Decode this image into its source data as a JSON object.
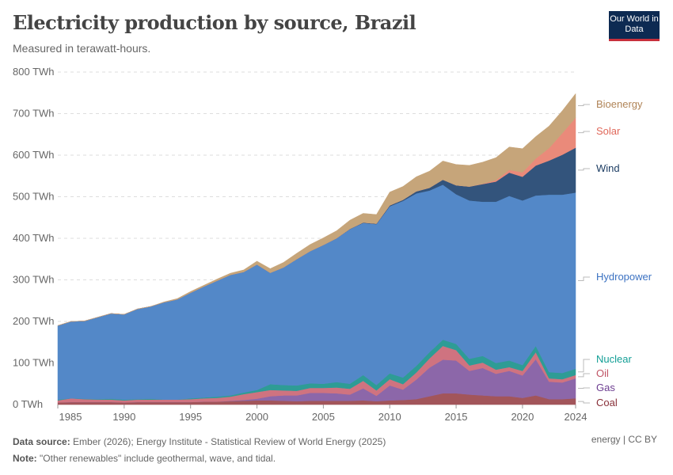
{
  "header": {
    "title": "Electricity production by source, Brazil",
    "subtitle": "Measured in terawatt-hours.",
    "logo": "Our World in Data"
  },
  "footer": {
    "source_label": "Data source:",
    "source": "Ember (2026); Energy Institute - Statistical Review of World Energy (2025)",
    "note_label": "Note:",
    "note": "\"Other renewables\" include geothermal, wave, and tidal.",
    "license": "energy | CC BY"
  },
  "chart_data": {
    "type": "area",
    "stacked": true,
    "title": "Electricity production by source, Brazil",
    "subtitle": "Measured in terawatt-hours.",
    "xlim": [
      1985,
      2024
    ],
    "ylim": [
      0,
      800
    ],
    "grid": true,
    "legend": "right-inline",
    "y_ticks": [
      {
        "v": 0,
        "label": "0 TWh"
      },
      {
        "v": 100,
        "label": "100 TWh"
      },
      {
        "v": 200,
        "label": "200 TWh"
      },
      {
        "v": 300,
        "label": "300 TWh"
      },
      {
        "v": 400,
        "label": "400 TWh"
      },
      {
        "v": 500,
        "label": "500 TWh"
      },
      {
        "v": 600,
        "label": "600 TWh"
      },
      {
        "v": 700,
        "label": "700 TWh"
      },
      {
        "v": 800,
        "label": "800 TWh"
      }
    ],
    "x_ticks": [
      "1985",
      "1990",
      "1995",
      "2000",
      "2005",
      "2010",
      "2015",
      "2020",
      "2024"
    ],
    "x": [
      1985,
      1986,
      1987,
      1988,
      1989,
      1990,
      1991,
      1992,
      1993,
      1994,
      1995,
      1996,
      1997,
      1998,
      1999,
      2000,
      2001,
      2002,
      2003,
      2004,
      2005,
      2006,
      2007,
      2008,
      2009,
      2010,
      2011,
      2012,
      2013,
      2014,
      2015,
      2016,
      2017,
      2018,
      2019,
      2020,
      2021,
      2022,
      2023,
      2024
    ],
    "series": [
      {
        "name": "Coal",
        "fill": "#a2555a",
        "text": "#883039",
        "values": [
          5,
          6,
          6,
          6,
          6,
          5,
          6,
          6,
          6,
          6,
          6,
          7,
          7,
          8,
          9,
          10,
          10,
          9,
          8,
          9,
          9,
          9,
          9,
          10,
          8,
          10,
          11,
          13,
          20,
          27,
          27,
          24,
          22,
          20,
          20,
          16,
          22,
          13,
          13,
          15
        ]
      },
      {
        "name": "Gas",
        "fill": "#8c67a9",
        "text": "#6d3e91",
        "values": [
          0,
          0,
          0,
          0,
          0,
          0,
          0,
          0,
          0,
          0,
          0,
          0,
          0,
          1,
          2,
          4,
          10,
          13,
          14,
          19,
          19,
          18,
          15,
          29,
          13,
          36,
          25,
          47,
          69,
          81,
          79,
          57,
          66,
          54,
          61,
          54,
          87,
          42,
          40,
          48
        ]
      },
      {
        "name": "Oil",
        "fill": "#cf7380",
        "text": "#c05465",
        "values": [
          5,
          9,
          7,
          6,
          6,
          5,
          6,
          6,
          6,
          6,
          7,
          8,
          9,
          10,
          14,
          16,
          15,
          12,
          11,
          12,
          12,
          14,
          14,
          18,
          13,
          15,
          13,
          17,
          22,
          33,
          25,
          13,
          13,
          10,
          9,
          11,
          17,
          8,
          8,
          8
        ]
      },
      {
        "name": "Nuclear",
        "fill": "#2e9c95",
        "text": "#139f96",
        "values": [
          2,
          0,
          1,
          1,
          2,
          2,
          1,
          2,
          0,
          0,
          2,
          2,
          3,
          3,
          4,
          5,
          14,
          13,
          13,
          11,
          10,
          13,
          12,
          14,
          13,
          14,
          16,
          16,
          15,
          15,
          15,
          16,
          16,
          16,
          16,
          14,
          15,
          15,
          15,
          15
        ]
      },
      {
        "name": "Hydropower",
        "fill": "#5388c8",
        "text": "#3c72c2",
        "values": [
          178,
          185,
          187,
          197,
          205,
          205,
          217,
          222,
          234,
          241,
          254,
          267,
          279,
          290,
          290,
          302,
          268,
          283,
          304,
          318,
          334,
          346,
          372,
          366,
          387,
          402,
          425,
          415,
          389,
          373,
          360,
          381,
          371,
          388,
          396,
          396,
          362,
          427,
          429,
          424
        ]
      },
      {
        "name": "Wind",
        "fill": "#33547c",
        "text": "#1d3d63",
        "values": [
          0,
          0,
          0,
          0,
          0,
          0,
          0,
          0,
          0,
          0,
          0,
          0,
          0,
          0,
          0,
          0,
          0,
          0,
          0,
          0,
          0,
          0.2,
          0.6,
          1,
          1.2,
          2.2,
          2.7,
          5,
          6.6,
          12,
          21.6,
          33.5,
          42.4,
          48.5,
          56,
          57,
          72,
          82,
          96,
          108
        ]
      },
      {
        "name": "Solar",
        "fill": "#ea8a7a",
        "text": "#e0685a",
        "values": [
          0,
          0,
          0,
          0,
          0,
          0,
          0,
          0,
          0,
          0,
          0,
          0,
          0,
          0,
          0,
          0,
          0,
          0,
          0,
          0,
          0,
          0,
          0,
          0,
          0,
          0,
          0,
          0,
          0,
          0,
          0,
          0,
          0.8,
          3.5,
          6.7,
          10.7,
          16.8,
          30,
          52,
          72
        ]
      },
      {
        "name": "Bioenergy",
        "fill": "#c6a57a",
        "text": "#b08457",
        "values": [
          0,
          0,
          0,
          0,
          0,
          0,
          0,
          0,
          1,
          2,
          3,
          3,
          4,
          4,
          5,
          8,
          10,
          12,
          14,
          16,
          17,
          18,
          21,
          22,
          22,
          32,
          32,
          35,
          40,
          45,
          50,
          51,
          52,
          54,
          55,
          57,
          53,
          53,
          54,
          58
        ]
      }
    ]
  }
}
